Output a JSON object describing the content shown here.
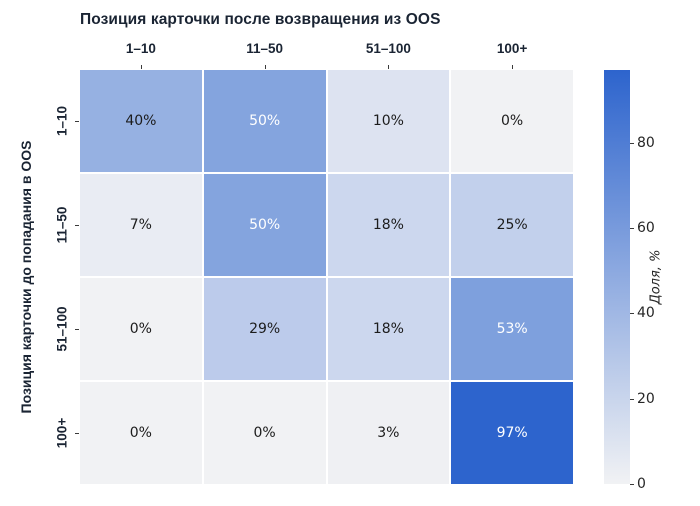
{
  "title": "Позиция карточки после возвращения из OOS",
  "chart_data": {
    "type": "heatmap",
    "title": "Позиция карточки после возвращения из OOS",
    "xlabel": "",
    "ylabel": "Позиция карточки до попадания в OOS",
    "x_categories": [
      "1–10",
      "11–50",
      "51–100",
      "100+"
    ],
    "y_categories": [
      "1–10",
      "11–50",
      "51–100",
      "100+"
    ],
    "values": [
      [
        40,
        50,
        10,
        0
      ],
      [
        7,
        50,
        18,
        25
      ],
      [
        0,
        29,
        18,
        53
      ],
      [
        0,
        0,
        3,
        97
      ]
    ],
    "cell_labels": [
      [
        "40%",
        "50%",
        "10%",
        "0%"
      ],
      [
        "7%",
        "50%",
        "18%",
        "25%"
      ],
      [
        "0%",
        "29%",
        "18%",
        "53%"
      ],
      [
        "0%",
        "0%",
        "3%",
        "97%"
      ]
    ],
    "cell_colors": [
      [
        "#96b1e2",
        "#84a4de",
        "#dde3f1",
        "#f1f2f4"
      ],
      [
        "#e9ecf3",
        "#84a4de",
        "#ccd7ee",
        "#c2d0ec"
      ],
      [
        "#f1f2f4",
        "#bccbeb",
        "#ccd7ee",
        "#7ea0dd"
      ],
      [
        "#f1f2f4",
        "#f1f2f4",
        "#eff0f3",
        "#2d64cd"
      ]
    ],
    "colorbar": {
      "label": "Доля, %",
      "ticks": [
        0,
        20,
        40,
        60,
        80
      ],
      "vmin": 0,
      "vmax": 97
    },
    "colors": {
      "cmap_low": "#f1f2f4",
      "cmap_high": "#2d64cd",
      "heading_text": "#1a2433",
      "annotation_dark": "#1c1c1c",
      "annotation_light": "#ffffff",
      "tick_mark": "#3a3a3a",
      "grid_gap": "#ffffff",
      "white_text_threshold": 45
    },
    "legend_position": "right-colorbar",
    "grid": "off"
  }
}
